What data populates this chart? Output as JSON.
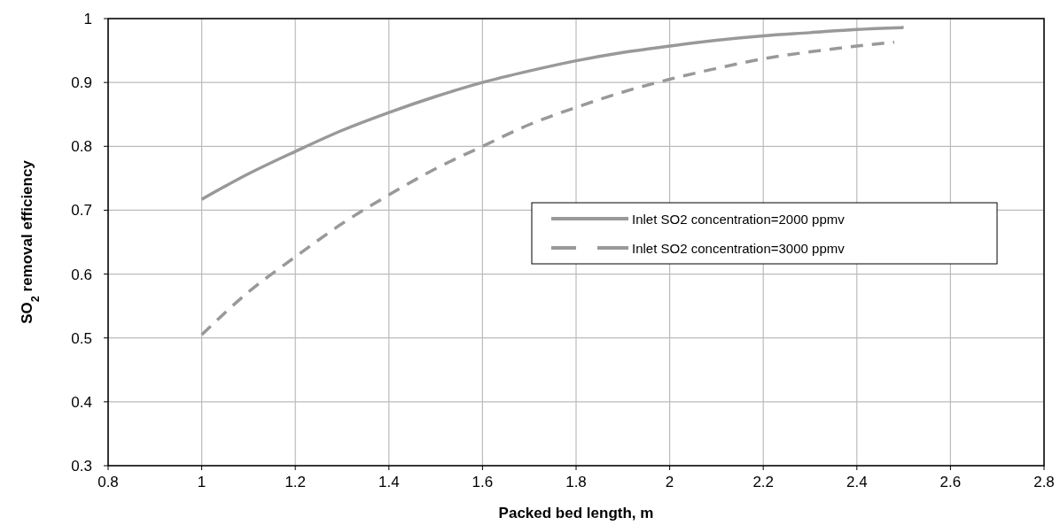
{
  "chart_data": {
    "type": "line",
    "xlabel": "Packed bed length, m",
    "ylabel": "SO$_{2}$ removal efficiency",
    "xlim": [
      0.8,
      2.8
    ],
    "xticks": [
      0.8,
      1,
      1.2,
      1.4,
      1.6,
      1.8,
      2,
      2.2,
      2.4,
      2.6,
      2.8
    ],
    "ylim": [
      0.3,
      1
    ],
    "yticks": [
      0.3,
      0.4,
      0.5,
      0.6,
      0.7,
      0.8,
      0.9,
      1
    ],
    "grid": true,
    "legend": "right",
    "marker": "none",
    "series": [
      {
        "name": "Inlet SO2 concentration=2000 ppmv",
        "color": "#999999",
        "line_style": "solid",
        "x": [
          1,
          1.1,
          1.2,
          1.3,
          1.4,
          1.5,
          1.6,
          1.7,
          1.8,
          1.9,
          2.0,
          2.1,
          2.2,
          2.3,
          2.4,
          2.5
        ],
        "values": [
          0.717,
          0.757,
          0.792,
          0.825,
          0.853,
          0.878,
          0.9,
          0.918,
          0.934,
          0.947,
          0.957,
          0.966,
          0.973,
          0.978,
          0.983,
          0.986
        ]
      },
      {
        "name": "Inlet SO2 concentration=3000 ppmv",
        "color": "#999999",
        "line_style": "dashed",
        "x": [
          1,
          1.1,
          1.2,
          1.3,
          1.4,
          1.5,
          1.6,
          1.7,
          1.8,
          1.9,
          2.0,
          2.1,
          2.2,
          2.3,
          2.4,
          2.48
        ],
        "values": [
          0.505,
          0.572,
          0.627,
          0.679,
          0.724,
          0.765,
          0.8,
          0.834,
          0.861,
          0.885,
          0.905,
          0.922,
          0.937,
          0.948,
          0.957,
          0.963
        ]
      }
    ]
  }
}
